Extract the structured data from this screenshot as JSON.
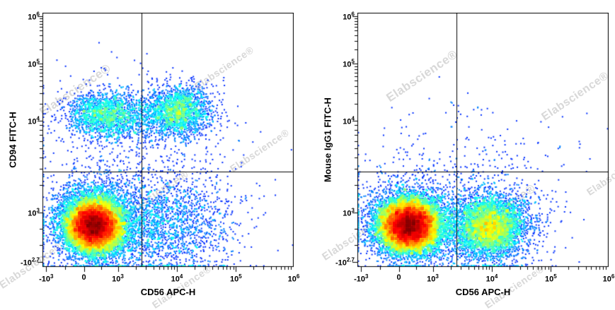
{
  "watermark": {
    "text": "Elabscience®",
    "color": "#d8d8d8"
  },
  "chart_data": [
    {
      "type": "scatter",
      "subtype": "flow-cytometry-pseudocolor-density",
      "title": "",
      "xlabel": "CD56 APC-H",
      "ylabel": "CD94 FITC-H",
      "x_scale": "biexponential",
      "y_scale": "biexponential",
      "xlim": [
        -1000,
        1000000
      ],
      "ylim": [
        -500,
        1000000
      ],
      "x_ticks": [
        {
          "b": "-10",
          "e": "3",
          "v": -1000,
          "f": 0.015
        },
        {
          "b": "0",
          "e": "",
          "v": 0,
          "f": 0.165
        },
        {
          "b": "10",
          "e": "3",
          "v": 1000,
          "f": 0.3
        },
        {
          "b": "10",
          "e": "4",
          "v": 10000,
          "f": 0.535
        },
        {
          "b": "10",
          "e": "5",
          "v": 100000,
          "f": 0.77
        },
        {
          "b": "10",
          "e": "6",
          "v": 1000000,
          "f": 1.0
        }
      ],
      "y_ticks": [
        {
          "b": "-10",
          "e": "2.7",
          "v": -500,
          "f": 0.02
        },
        {
          "b": "10",
          "e": "3",
          "v": 1000,
          "f": 0.215
        },
        {
          "b": "10",
          "e": "4",
          "v": 10000,
          "f": 0.575
        },
        {
          "b": "10",
          "e": "5",
          "v": 100000,
          "f": 0.8
        },
        {
          "b": "10",
          "e": "6",
          "v": 1000000,
          "f": 0.985
        }
      ],
      "quadrant_gate": {
        "x": 2500,
        "y": 2800
      },
      "populations": [
        {
          "name": "CD56- CD94- main negative (dense red core)",
          "x": 300,
          "y": 600,
          "x_spread": 0.052,
          "y_spread": 0.048,
          "count": 16000
        },
        {
          "name": "negative halo",
          "x": 420,
          "y": 700,
          "x_spread": 0.1,
          "y_spread": 0.085,
          "count": 2600
        },
        {
          "name": "CD94+ CD56- band",
          "x": 600,
          "y": 13000,
          "x_spread": 0.075,
          "y_spread": 0.042,
          "count": 1500
        },
        {
          "name": "CD94+ CD56+ band",
          "x": 11000,
          "y": 15000,
          "x_spread": 0.06,
          "y_spread": 0.048,
          "count": 1700
        },
        {
          "name": "CD94+ bridge scatter",
          "x": 2500,
          "y": 12000,
          "x_spread": 0.13,
          "y_spread": 0.055,
          "count": 900
        },
        {
          "name": "CD56+ CD94- scatter",
          "x": 7000,
          "y": 600,
          "x_spread": 0.13,
          "y_spread": 0.1,
          "count": 1700
        },
        {
          "name": "diffuse scatter",
          "x": 2000,
          "y": 3500,
          "x_spread": 0.22,
          "y_spread": 0.17,
          "count": 550
        }
      ]
    },
    {
      "type": "scatter",
      "subtype": "flow-cytometry-pseudocolor-density",
      "title": "",
      "xlabel": "CD56 APC-H",
      "ylabel": "Mouse IgG1 FITC-H",
      "x_scale": "biexponential",
      "y_scale": "biexponential",
      "xlim": [
        -1000,
        1000000
      ],
      "ylim": [
        -500,
        1000000
      ],
      "x_ticks": [
        {
          "b": "-10",
          "e": "3",
          "v": -1000,
          "f": 0.015
        },
        {
          "b": "0",
          "e": "",
          "v": 0,
          "f": 0.165
        },
        {
          "b": "10",
          "e": "3",
          "v": 1000,
          "f": 0.3
        },
        {
          "b": "10",
          "e": "4",
          "v": 10000,
          "f": 0.535
        },
        {
          "b": "10",
          "e": "5",
          "v": 100000,
          "f": 0.77
        },
        {
          "b": "10",
          "e": "6",
          "v": 1000000,
          "f": 1.0
        }
      ],
      "y_ticks": [
        {
          "b": "-10",
          "e": "2.7",
          "v": -500,
          "f": 0.02
        },
        {
          "b": "10",
          "e": "3",
          "v": 1000,
          "f": 0.215
        },
        {
          "b": "10",
          "e": "4",
          "v": 10000,
          "f": 0.575
        },
        {
          "b": "10",
          "e": "5",
          "v": 100000,
          "f": 0.8
        },
        {
          "b": "10",
          "e": "6",
          "v": 1000000,
          "f": 0.985
        }
      ],
      "quadrant_gate": {
        "x": 2500,
        "y": 2800
      },
      "populations": [
        {
          "name": "IgG1- CD56- main negative (dense red core)",
          "x": 300,
          "y": 600,
          "x_spread": 0.055,
          "y_spread": 0.048,
          "count": 16000
        },
        {
          "name": "negative halo",
          "x": 450,
          "y": 700,
          "x_spread": 0.11,
          "y_spread": 0.08,
          "count": 2400
        },
        {
          "name": "CD56+ isotype-negative population",
          "x": 9000,
          "y": 550,
          "x_spread": 0.068,
          "y_spread": 0.058,
          "count": 4200
        },
        {
          "name": "CD56+ halo",
          "x": 9000,
          "y": 600,
          "x_spread": 0.12,
          "y_spread": 0.09,
          "count": 1000
        },
        {
          "name": "diffuse scatter",
          "x": 2500,
          "y": 3000,
          "x_spread": 0.22,
          "y_spread": 0.12,
          "count": 300
        }
      ]
    }
  ]
}
